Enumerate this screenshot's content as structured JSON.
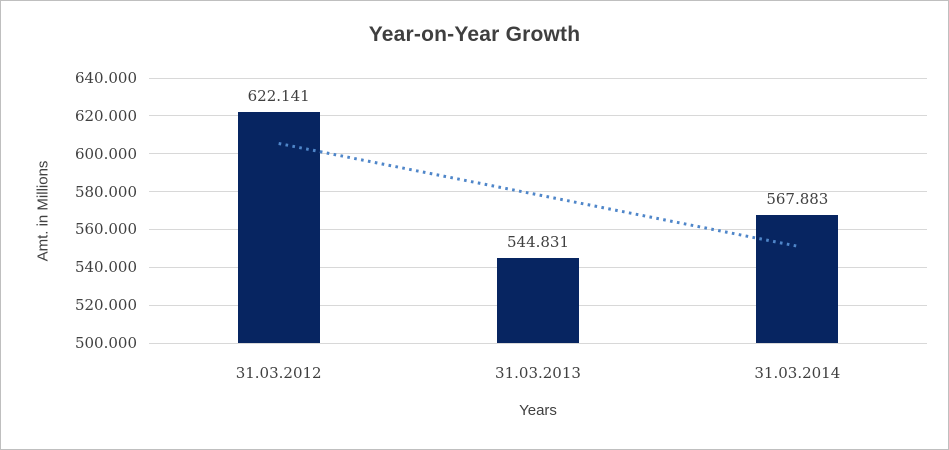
{
  "chart_data": {
    "type": "bar",
    "title": "Year-on-Year Growth",
    "xlabel": "Years",
    "ylabel": "Amt. in Millions",
    "categories": [
      "31.03.2012",
      "31.03.2013",
      "31.03.2014"
    ],
    "values": [
      622.141,
      544.831,
      567.883
    ],
    "data_labels": [
      "622.141",
      "544.831",
      "567.883"
    ],
    "yticks": [
      "640.000",
      "620.000",
      "600.000",
      "580.000",
      "560.000",
      "540.000",
      "520.000",
      "500.000"
    ],
    "ylim": [
      500,
      640
    ],
    "ytick_step": 20,
    "grid": "horizontal",
    "legend": "none",
    "trendline": {
      "type": "linear",
      "style": "dotted",
      "endpoint_values": [
        605.414,
        551.156
      ]
    },
    "colors": {
      "bar": "#072561",
      "trendline": "#4f86c9",
      "gridline": "#d8d8d8",
      "text": "#404040",
      "title_text": "#3f3f3f",
      "background": "#ffffff",
      "border": "#bfbfbf"
    }
  }
}
